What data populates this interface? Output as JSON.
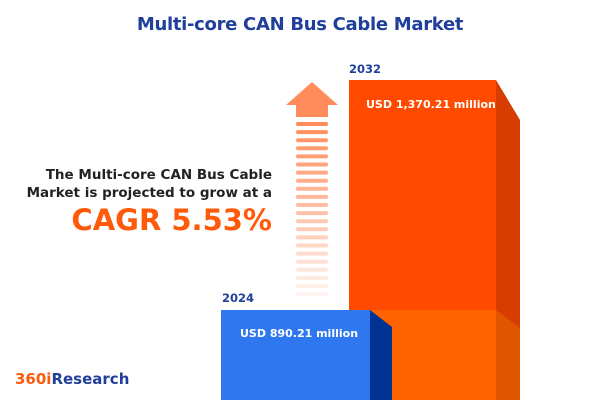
{
  "title": "Multi-core CAN Bus Cable Market",
  "description_line1": "The Multi-core CAN Bus Cable",
  "description_line2": "Market is projected to grow at a",
  "cagr_text": "CAGR 5.53%",
  "logo": {
    "part1": "360i",
    "part2": "Research"
  },
  "colors": {
    "title": "#1f3f9a",
    "accent": "#ff5a0a",
    "bar_2024": "#2f77ee",
    "bar_2032": "#ff4a00"
  },
  "chart_data": {
    "type": "bar",
    "categories": [
      "2024",
      "2032"
    ],
    "values": [
      890.21,
      1370.21
    ],
    "unit": "USD million",
    "labels": [
      "USD 890.21 million",
      "USD 1,370.21 million"
    ],
    "cagr": 5.53
  }
}
